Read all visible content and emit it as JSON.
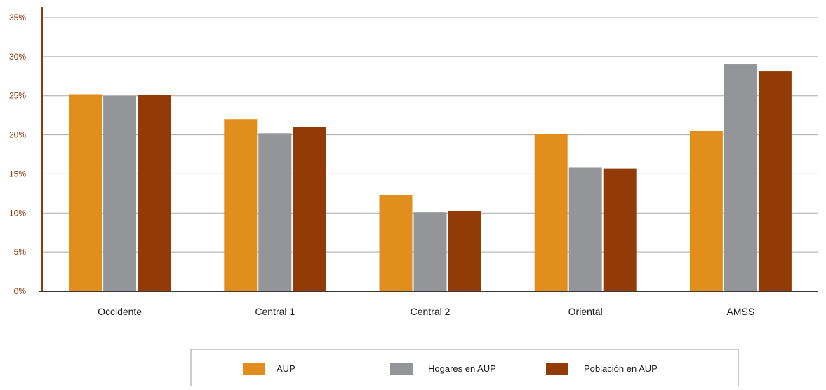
{
  "chart_data": {
    "type": "bar",
    "title": "",
    "xlabel": "",
    "ylabel": "",
    "categories": [
      "Occidente",
      "Central 1",
      "Central 2",
      "Oriental",
      "AMSS"
    ],
    "series": [
      {
        "name": "AUP",
        "values": [
          25.2,
          22.0,
          12.3,
          20.1,
          20.5
        ],
        "color": "#E28E1C"
      },
      {
        "name": "Hogares en AUP",
        "values": [
          25.0,
          20.2,
          10.1,
          15.8,
          29.0
        ],
        "color": "#939598"
      },
      {
        "name": "Población en AUP",
        "values": [
          25.1,
          21.0,
          10.3,
          15.7,
          28.1
        ],
        "color": "#923B06"
      }
    ],
    "ylim": [
      0,
      35
    ],
    "yticks": [
      0,
      5,
      10,
      15,
      20,
      25,
      30,
      35
    ],
    "ytick_labels": [
      "0%",
      "5%",
      "10%",
      "15%",
      "20%",
      "25%",
      "30%",
      "35%"
    ],
    "grid": true,
    "legend_position": "bottom",
    "colors": {
      "axis": "#8B3A0F",
      "tick_label": "#8B3A0F",
      "grid": "#AAAAAA",
      "category_label": "#1A1A1A",
      "legend_border": "#999999"
    }
  }
}
